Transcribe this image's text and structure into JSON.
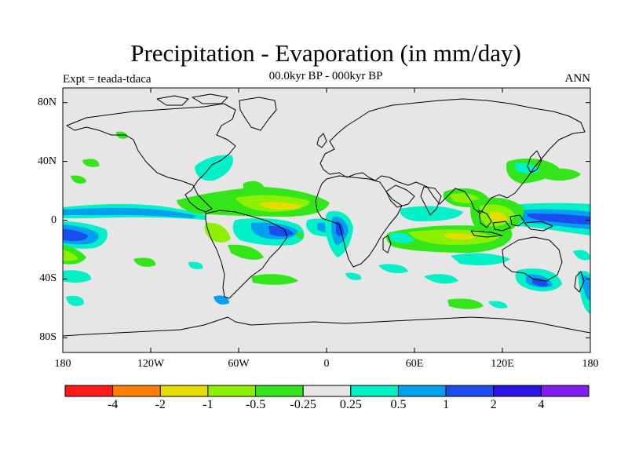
{
  "header": {
    "title": "Precipitation - Evaporation (in mm/day)",
    "subtitle": "00.0kyr BP - 000kyr BP",
    "experiment": "Expt = teada-tdaca",
    "season": "ANN"
  },
  "map": {
    "projection": "cylindrical-equidistant",
    "lon_range": [
      -180,
      180
    ],
    "lat_range": [
      -90,
      90
    ],
    "lat_ticks": [
      {
        "value": 80,
        "label": "80N"
      },
      {
        "value": 40,
        "label": "40N"
      },
      {
        "value": 0,
        "label": "0"
      },
      {
        "value": -40,
        "label": "40S"
      },
      {
        "value": -80,
        "label": "80S"
      }
    ],
    "lon_ticks": [
      {
        "value": -180,
        "label": "180"
      },
      {
        "value": -120,
        "label": "120W"
      },
      {
        "value": -60,
        "label": "60W"
      },
      {
        "value": 0,
        "label": "0"
      },
      {
        "value": 60,
        "label": "60E"
      },
      {
        "value": 120,
        "label": "120E"
      },
      {
        "value": 180,
        "label": "180"
      }
    ],
    "background_color": "#e6e6e6",
    "coastline_color": "#000000"
  },
  "colorbar": {
    "colors": [
      "#ff1a1a",
      "#ff8000",
      "#e6dc00",
      "#8cf000",
      "#33e61a",
      "#e6e6e6",
      "#00f0c8",
      "#00a0f0",
      "#1a4cf0",
      "#2a14e6",
      "#8020f0"
    ],
    "labels": [
      "-4",
      "-2",
      "-1",
      "-0.5",
      "-0.25",
      "0.25",
      "0.5",
      "1",
      "2",
      "4"
    ]
  }
}
